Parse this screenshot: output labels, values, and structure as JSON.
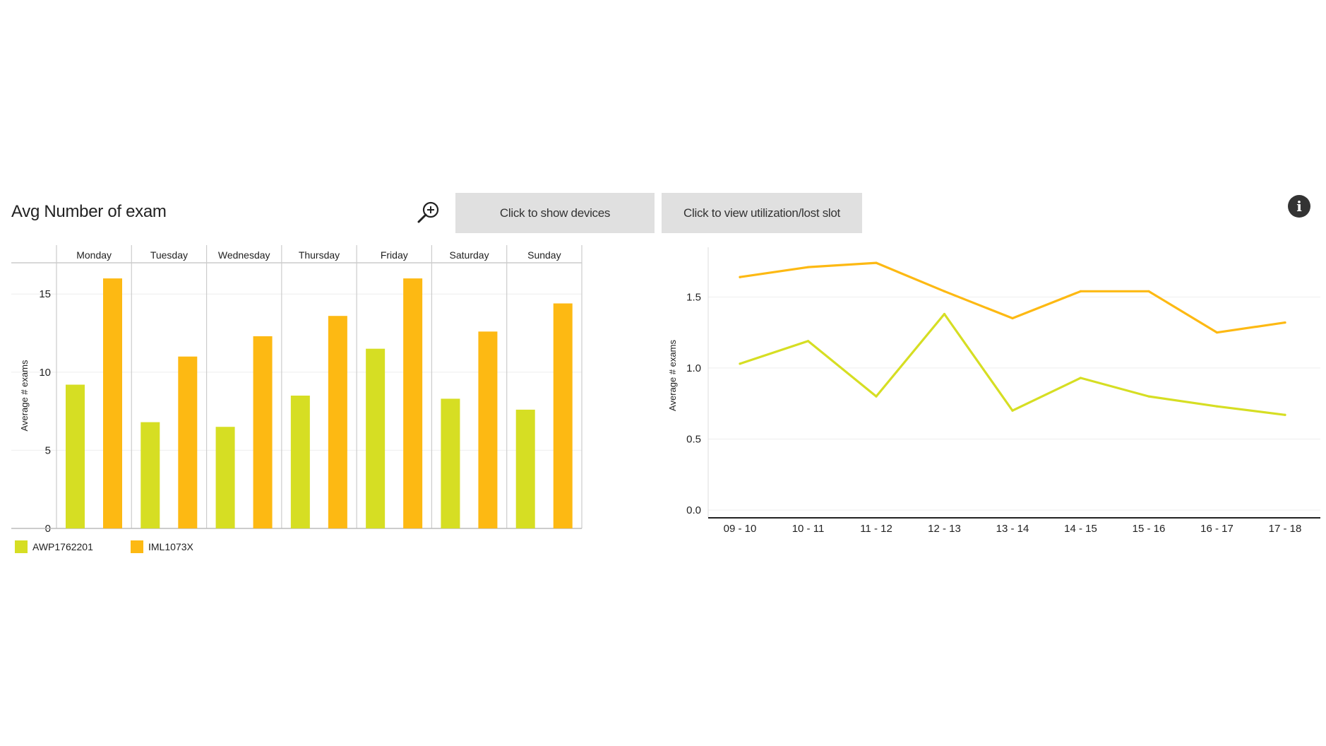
{
  "header": {
    "title": "Avg Number of exam",
    "zoom_icon": "zoom-in-icon",
    "show_devices_label": "Click to show devices",
    "view_utilization_label": "Click to view utilization/lost slot",
    "info_icon": "info-icon",
    "info_glyph": "i"
  },
  "colors": {
    "series1": "#d6de23",
    "series2": "#fdb913",
    "grid": "#dddddd"
  },
  "chart_data": [
    {
      "type": "bar",
      "categories": [
        "Monday",
        "Tuesday",
        "Wednesday",
        "Thursday",
        "Friday",
        "Saturday",
        "Sunday"
      ],
      "series": [
        {
          "name": "AWP1762201",
          "values": [
            9.2,
            6.8,
            6.5,
            8.5,
            11.5,
            8.3,
            7.6
          ]
        },
        {
          "name": "IML1073X",
          "values": [
            16.0,
            11.0,
            12.3,
            13.6,
            16.0,
            12.6,
            14.4
          ]
        }
      ],
      "ylabel": "Average # exams",
      "yticks": [
        0,
        5,
        10,
        15
      ],
      "ylim": [
        0,
        17
      ],
      "legend": "bottom-left",
      "grid": true
    },
    {
      "type": "line",
      "categories": [
        "09 - 10",
        "10 - 11",
        "11 - 12",
        "12 - 13",
        "13 - 14",
        "14 - 15",
        "15 - 16",
        "16 - 17",
        "17 - 18"
      ],
      "series": [
        {
          "values": [
            1.03,
            1.19,
            0.8,
            1.38,
            0.7,
            0.93,
            0.8,
            0.73,
            0.67
          ]
        },
        {
          "values": [
            1.64,
            1.71,
            1.74,
            1.54,
            1.35,
            1.54,
            1.54,
            1.25,
            1.32
          ]
        }
      ],
      "ylabel": "Average # exams",
      "yticks": [
        "0.0",
        "0.5",
        "1.0",
        "1.5"
      ],
      "ylim": [
        0,
        1.85
      ],
      "grid": true
    }
  ]
}
